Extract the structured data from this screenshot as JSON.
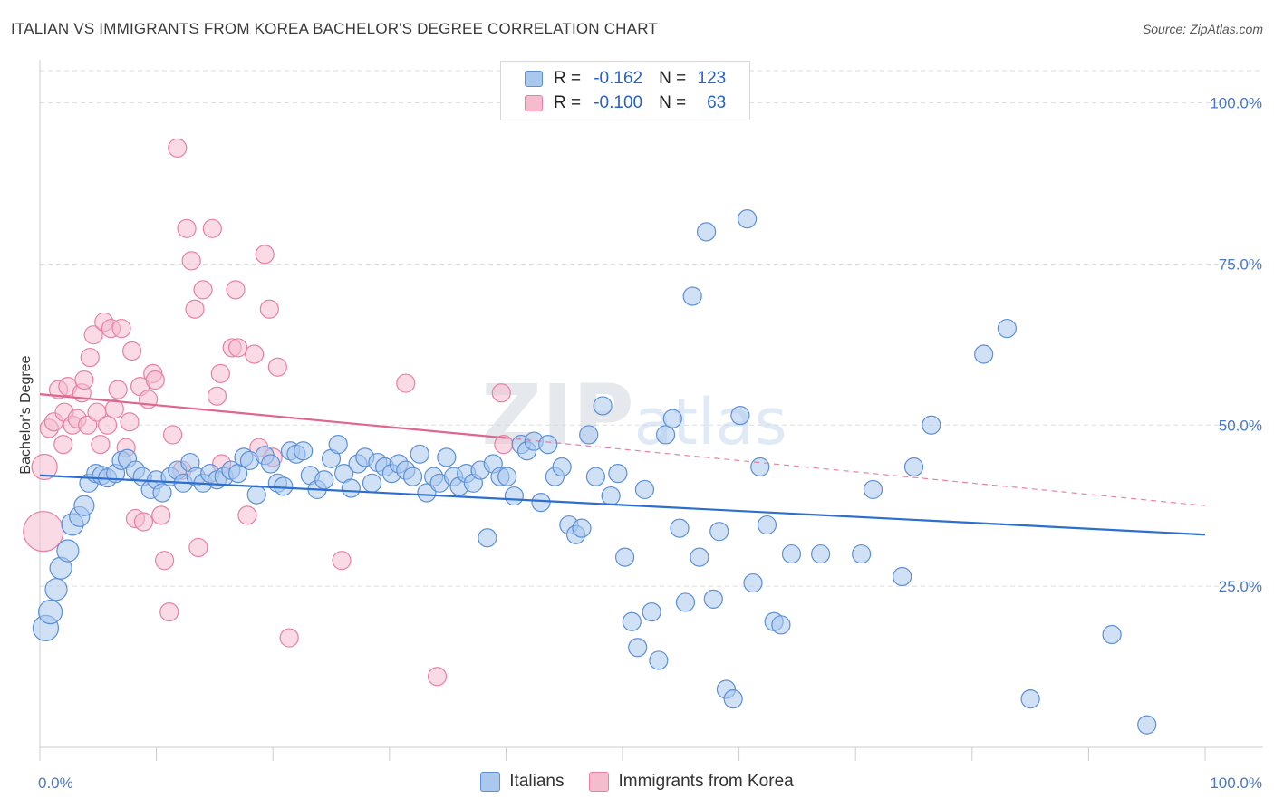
{
  "title": "ITALIAN VS IMMIGRANTS FROM KOREA BACHELOR'S DEGREE CORRELATION CHART",
  "source": "Source: ZipAtlas.com",
  "watermark": "ZIPatlas",
  "legend": {
    "rows": [
      {
        "r_label": "R =",
        "r_value": "-0.162",
        "n_label": "N =",
        "n_value": "123"
      },
      {
        "r_label": "R =",
        "r_value": "-0.100",
        "n_label": "N =",
        "n_value": "63"
      }
    ]
  },
  "colors": {
    "blue_fill": "#aac8ee",
    "blue_stroke": "#5b8fd6",
    "blue_line": "#2d6fcf",
    "pink_fill": "#f5bccd",
    "pink_stroke": "#e681a3",
    "pink_line": "#e0658f",
    "grid": "#dddddd",
    "tick_label": "#4a78c4"
  },
  "chart_data": {
    "type": "scatter",
    "title": "ITALIAN VS IMMIGRANTS FROM KOREA BACHELOR'S DEGREE CORRELATION CHART",
    "xlabel": "",
    "ylabel": "Bachelor's Degree",
    "xlim": [
      0,
      100
    ],
    "ylim": [
      0,
      105
    ],
    "x_tick_labels": [
      "0.0%",
      "100.0%"
    ],
    "y_ticks": [
      25,
      50,
      75,
      100
    ],
    "y_tick_labels": [
      "25.0%",
      "50.0%",
      "75.0%",
      "100.0%"
    ],
    "grid": "horizontal dashed",
    "legend_position": "top-center",
    "series": [
      {
        "name": "Italians",
        "r": -0.162,
        "n": 123,
        "trend": {
          "x": [
            0,
            100
          ],
          "y": [
            42.2,
            33.0
          ],
          "style": "solid"
        },
        "points": [
          [
            0.5,
            18.5,
            14
          ],
          [
            0.9,
            21.0,
            13
          ],
          [
            1.4,
            24.5,
            12
          ],
          [
            1.8,
            27.8,
            12
          ],
          [
            2.4,
            30.5,
            12
          ],
          [
            2.8,
            34.6,
            12
          ],
          [
            3.4,
            35.8,
            11
          ],
          [
            3.8,
            37.5,
            11
          ],
          [
            4.2,
            41.0,
            10
          ],
          [
            4.8,
            42.5,
            10
          ],
          [
            5.3,
            42.2,
            10
          ],
          [
            5.8,
            41.8,
            10
          ],
          [
            6.5,
            42.5,
            10
          ],
          [
            7.0,
            44.5,
            10
          ],
          [
            7.5,
            44.8,
            10
          ],
          [
            8.2,
            43.0,
            10
          ],
          [
            8.8,
            42.0,
            10
          ],
          [
            9.5,
            40.0,
            10
          ],
          [
            10.0,
            41.5,
            10
          ],
          [
            10.5,
            39.5,
            10
          ],
          [
            11.2,
            42.0,
            10
          ],
          [
            11.8,
            43.0,
            10
          ],
          [
            12.3,
            41.0,
            10
          ],
          [
            12.9,
            44.2,
            10
          ],
          [
            13.4,
            42.0,
            10
          ],
          [
            14.0,
            41.0,
            10
          ],
          [
            14.6,
            42.5,
            10
          ],
          [
            15.2,
            41.5,
            10
          ],
          [
            15.8,
            42.0,
            10
          ],
          [
            16.4,
            43.0,
            10
          ],
          [
            17.0,
            42.5,
            10
          ],
          [
            17.5,
            45.0,
            10
          ],
          [
            18.0,
            44.5,
            10
          ],
          [
            18.6,
            39.2,
            10
          ],
          [
            19.3,
            45.3,
            10
          ],
          [
            19.8,
            44.0,
            10
          ],
          [
            20.4,
            41.0,
            10
          ],
          [
            20.9,
            40.5,
            10
          ],
          [
            21.5,
            46.0,
            10
          ],
          [
            22.0,
            45.5,
            10
          ],
          [
            22.6,
            46.0,
            10
          ],
          [
            23.2,
            42.2,
            10
          ],
          [
            23.8,
            40.0,
            10
          ],
          [
            24.4,
            41.5,
            10
          ],
          [
            25.0,
            44.8,
            10
          ],
          [
            25.6,
            47.0,
            10
          ],
          [
            26.1,
            42.5,
            10
          ],
          [
            26.7,
            40.2,
            10
          ],
          [
            27.3,
            44.0,
            10
          ],
          [
            27.9,
            45.0,
            10
          ],
          [
            28.5,
            41.0,
            10
          ],
          [
            29.0,
            44.2,
            10
          ],
          [
            29.6,
            43.5,
            10
          ],
          [
            30.2,
            42.5,
            10
          ],
          [
            30.8,
            44.0,
            10
          ],
          [
            31.4,
            43.0,
            10
          ],
          [
            32.0,
            42.0,
            10
          ],
          [
            32.6,
            45.5,
            10
          ],
          [
            33.2,
            39.5,
            10
          ],
          [
            33.8,
            42.0,
            10
          ],
          [
            34.3,
            41.0,
            10
          ],
          [
            34.9,
            45.0,
            10
          ],
          [
            35.5,
            42.0,
            10
          ],
          [
            36.0,
            40.5,
            10
          ],
          [
            36.6,
            42.5,
            10
          ],
          [
            37.2,
            41.0,
            10
          ],
          [
            37.8,
            43.0,
            10
          ],
          [
            38.4,
            32.5,
            10
          ],
          [
            38.9,
            44.0,
            10
          ],
          [
            39.5,
            42.0,
            10
          ],
          [
            40.1,
            42.0,
            10
          ],
          [
            40.7,
            39.0,
            10
          ],
          [
            41.3,
            47.0,
            10
          ],
          [
            41.8,
            46.0,
            10
          ],
          [
            42.4,
            47.5,
            10
          ],
          [
            43.0,
            38.0,
            10
          ],
          [
            43.6,
            47.0,
            10
          ],
          [
            44.2,
            42.0,
            10
          ],
          [
            44.8,
            43.5,
            10
          ],
          [
            45.4,
            34.5,
            10
          ],
          [
            46.0,
            33.0,
            10
          ],
          [
            46.5,
            34.0,
            10
          ],
          [
            47.1,
            48.5,
            10
          ],
          [
            47.7,
            42.0,
            10
          ],
          [
            48.3,
            53.0,
            10
          ],
          [
            49.0,
            39.0,
            10
          ],
          [
            49.6,
            42.5,
            10
          ],
          [
            50.2,
            29.5,
            10
          ],
          [
            50.8,
            19.5,
            10
          ],
          [
            51.3,
            15.5,
            10
          ],
          [
            51.9,
            40.0,
            10
          ],
          [
            52.5,
            21.0,
            10
          ],
          [
            53.1,
            13.5,
            10
          ],
          [
            53.7,
            48.5,
            10
          ],
          [
            54.3,
            51.0,
            10
          ],
          [
            54.9,
            34.0,
            10
          ],
          [
            55.4,
            22.5,
            10
          ],
          [
            56.0,
            70.0,
            10
          ],
          [
            56.6,
            29.5,
            10
          ],
          [
            57.2,
            80.0,
            10
          ],
          [
            57.8,
            23.0,
            10
          ],
          [
            58.3,
            33.5,
            10
          ],
          [
            58.9,
            9.0,
            10
          ],
          [
            59.5,
            7.5,
            10
          ],
          [
            60.1,
            51.5,
            10
          ],
          [
            60.7,
            82.0,
            10
          ],
          [
            61.2,
            25.5,
            10
          ],
          [
            61.8,
            43.5,
            10
          ],
          [
            62.4,
            34.5,
            10
          ],
          [
            63.0,
            19.5,
            10
          ],
          [
            63.6,
            19.0,
            10
          ],
          [
            64.5,
            30.0,
            10
          ],
          [
            67.0,
            30.0,
            10
          ],
          [
            70.5,
            30.0,
            10
          ],
          [
            74.0,
            26.5,
            10
          ],
          [
            75.0,
            43.5,
            10
          ],
          [
            76.5,
            50.0,
            10
          ],
          [
            81.0,
            61.0,
            10
          ],
          [
            83.0,
            65.0,
            10
          ],
          [
            85.0,
            7.5,
            10
          ],
          [
            92.0,
            17.5,
            10
          ],
          [
            95.0,
            3.5,
            10
          ],
          [
            71.5,
            40.0,
            10
          ]
        ]
      },
      {
        "name": "Immigrants from Korea",
        "r": -0.1,
        "n": 63,
        "trend": {
          "x": [
            0,
            40
          ],
          "y": [
            54.8,
            48.0
          ],
          "style": "solid",
          "extension": {
            "x": [
              40,
              100
            ],
            "y": [
              48.0,
              37.5
            ],
            "style": "dashed"
          }
        },
        "points": [
          [
            0.3,
            33.5,
            22
          ],
          [
            0.4,
            43.5,
            14
          ],
          [
            0.8,
            49.5,
            10
          ],
          [
            1.2,
            50.5,
            10
          ],
          [
            1.6,
            55.5,
            10
          ],
          [
            2.0,
            47.0,
            10
          ],
          [
            2.1,
            52.0,
            10
          ],
          [
            2.4,
            56.0,
            10
          ],
          [
            2.8,
            50.0,
            10
          ],
          [
            3.2,
            51.0,
            10
          ],
          [
            3.6,
            55.0,
            10
          ],
          [
            3.8,
            57.0,
            10
          ],
          [
            4.1,
            50.0,
            10
          ],
          [
            4.3,
            60.5,
            10
          ],
          [
            4.6,
            64.0,
            10
          ],
          [
            4.9,
            52.0,
            10
          ],
          [
            5.2,
            47.0,
            10
          ],
          [
            5.5,
            66.0,
            10
          ],
          [
            5.8,
            50.0,
            10
          ],
          [
            6.1,
            65.0,
            10
          ],
          [
            6.4,
            52.5,
            10
          ],
          [
            6.7,
            55.5,
            10
          ],
          [
            7.0,
            65.0,
            10
          ],
          [
            7.4,
            46.5,
            10
          ],
          [
            7.7,
            50.5,
            10
          ],
          [
            7.9,
            61.5,
            10
          ],
          [
            8.2,
            35.5,
            10
          ],
          [
            8.6,
            56.0,
            10
          ],
          [
            8.9,
            35.0,
            10
          ],
          [
            9.3,
            54.0,
            10
          ],
          [
            9.7,
            58.0,
            10
          ],
          [
            9.9,
            57.0,
            10
          ],
          [
            10.4,
            36.0,
            10
          ],
          [
            10.7,
            29.0,
            10
          ],
          [
            11.1,
            21.0,
            10
          ],
          [
            11.4,
            48.5,
            10
          ],
          [
            11.8,
            93.0,
            10
          ],
          [
            12.2,
            43.0,
            10
          ],
          [
            12.6,
            80.5,
            10
          ],
          [
            13.0,
            75.5,
            10
          ],
          [
            13.3,
            68.0,
            10
          ],
          [
            13.6,
            31.0,
            10
          ],
          [
            14.0,
            71.0,
            10
          ],
          [
            14.8,
            80.5,
            10
          ],
          [
            15.2,
            54.5,
            10
          ],
          [
            15.5,
            58.0,
            10
          ],
          [
            16.5,
            62.0,
            10
          ],
          [
            16.8,
            71.0,
            10
          ],
          [
            17.8,
            36.0,
            10
          ],
          [
            18.4,
            61.0,
            10
          ],
          [
            18.8,
            46.5,
            10
          ],
          [
            19.3,
            76.5,
            10
          ],
          [
            19.7,
            68.0,
            10
          ],
          [
            20.4,
            59.0,
            10
          ],
          [
            21.4,
            17.0,
            10
          ],
          [
            25.9,
            29.0,
            10
          ],
          [
            31.4,
            56.5,
            10
          ],
          [
            34.1,
            11.0,
            10
          ],
          [
            39.8,
            47.0,
            10
          ],
          [
            39.6,
            55.0,
            10
          ],
          [
            15.6,
            44.0,
            10
          ],
          [
            20.0,
            45.0,
            10
          ],
          [
            17.0,
            62.0,
            10
          ]
        ]
      }
    ]
  },
  "bottom_legend": [
    "Italians",
    "Immigrants from Korea"
  ]
}
